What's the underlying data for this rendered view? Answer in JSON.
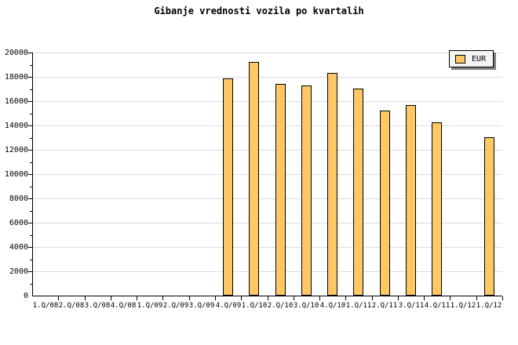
{
  "title": "Gibanje vrednosti vozila po kvartalih",
  "legend": {
    "label": "EUR"
  },
  "colors": {
    "bar_fill": "#FFC865",
    "bar_border": "#000000",
    "grid": "#DCDCDC",
    "axis": "#000000",
    "legend_bg": "#F4F4F4",
    "legend_shadow": "#808080",
    "background": "#FFFFFF"
  },
  "chart_data": {
    "type": "bar",
    "title": "Gibanje vrednosti vozila po kvartalih",
    "categories": [
      "1.Q/08",
      "2.Q/08",
      "3.Q/08",
      "4.Q/08",
      "1.Q/09",
      "2.Q/09",
      "3.Q/09",
      "4.Q/09",
      "1.Q/10",
      "2.Q/10",
      "3.Q/10",
      "4.Q/10",
      "1.Q/11",
      "2.Q/11",
      "3.Q/11",
      "4.Q/11",
      "1.Q/12",
      "1.Q/12"
    ],
    "series": [
      {
        "name": "EUR",
        "values": [
          null,
          null,
          null,
          null,
          null,
          null,
          null,
          17900,
          19250,
          17400,
          17300,
          18300,
          17000,
          15250,
          15700,
          14250,
          null,
          13000
        ]
      }
    ],
    "xlabel": "",
    "ylabel": "",
    "ylim": [
      0,
      20000
    ],
    "y_tick_step": 2000,
    "y_minor_tick_step": 1000,
    "y_tick_labels": [
      "0",
      "2000",
      "4000",
      "6000",
      "8000",
      "10000",
      "12000",
      "14000",
      "16000",
      "18000",
      "20000"
    ],
    "grid": "horizontal-major-only",
    "legend_position": "top-right"
  }
}
